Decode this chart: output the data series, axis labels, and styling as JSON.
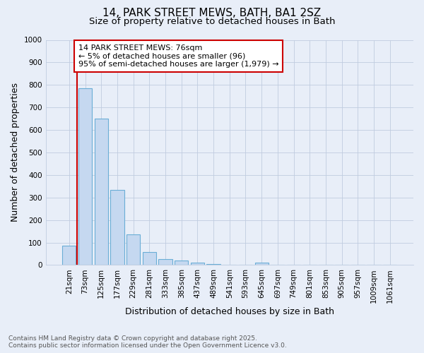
{
  "title_line1": "14, PARK STREET MEWS, BATH, BA1 2SZ",
  "title_line2": "Size of property relative to detached houses in Bath",
  "xlabel": "Distribution of detached houses by size in Bath",
  "ylabel": "Number of detached properties",
  "bar_labels": [
    "21sqm",
    "73sqm",
    "125sqm",
    "177sqm",
    "229sqm",
    "281sqm",
    "333sqm",
    "385sqm",
    "437sqm",
    "489sqm",
    "541sqm",
    "593sqm",
    "645sqm",
    "697sqm",
    "749sqm",
    "801sqm",
    "853sqm",
    "905sqm",
    "957sqm",
    "1009sqm",
    "1061sqm"
  ],
  "bar_values": [
    85,
    785,
    650,
    335,
    135,
    58,
    25,
    20,
    12,
    5,
    0,
    0,
    10,
    0,
    0,
    0,
    0,
    0,
    0,
    0,
    0
  ],
  "bar_color": "#c5d8f0",
  "bar_edge_color": "#6aaed6",
  "annotation_text": "14 PARK STREET MEWS: 76sqm\n← 5% of detached houses are smaller (96)\n95% of semi-detached houses are larger (1,979) →",
  "annotation_box_color": "#ffffff",
  "annotation_box_edge": "#cc0000",
  "vline_color": "#cc0000",
  "ylim": [
    0,
    1000
  ],
  "yticks": [
    0,
    100,
    200,
    300,
    400,
    500,
    600,
    700,
    800,
    900,
    1000
  ],
  "footer_line1": "Contains HM Land Registry data © Crown copyright and database right 2025.",
  "footer_line2": "Contains public sector information licensed under the Open Government Licence v3.0.",
  "bg_color": "#e8eef8",
  "plot_bg_color": "#e8eef8",
  "grid_color": "#c0cce0",
  "title_fontsize": 11,
  "subtitle_fontsize": 9.5,
  "axis_label_fontsize": 9,
  "tick_fontsize": 7.5,
  "footer_fontsize": 6.5,
  "annotation_fontsize": 8
}
